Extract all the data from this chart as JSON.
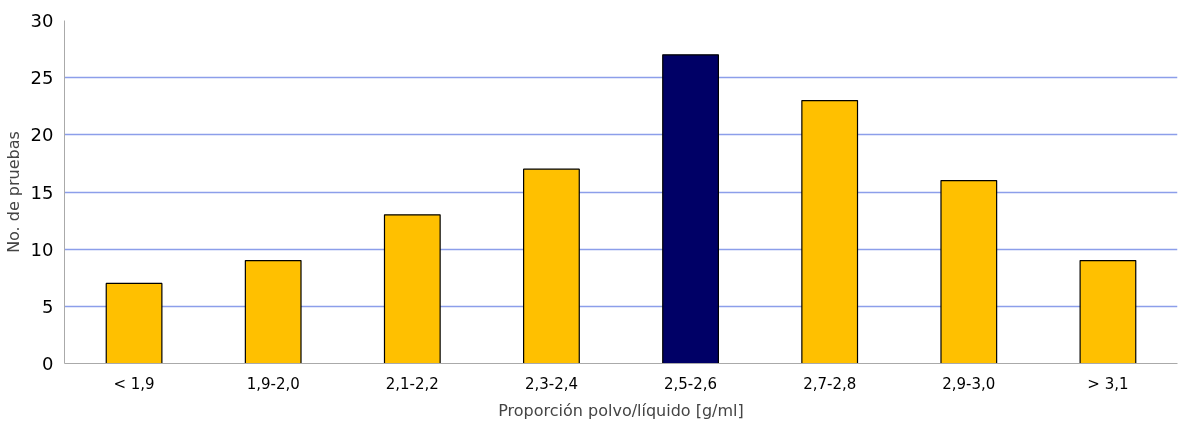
{
  "chart_data": {
    "type": "bar",
    "xlabel": "Proporción polvo/líquido [g/ml]",
    "ylabel": "No. de pruebas",
    "categories": [
      "< 1,9",
      "1,9-2,0",
      "2,1-2,2",
      "2,3-2,4",
      "2,5-2,6",
      "2,7-2,8",
      "2,9-3,0",
      "> 3,1"
    ],
    "values": [
      7,
      9,
      13,
      17,
      27,
      23,
      16,
      9
    ],
    "colors": [
      "#ffc000",
      "#ffc000",
      "#ffc000",
      "#ffc000",
      "#000066",
      "#ffc000",
      "#ffc000",
      "#ffc000"
    ],
    "ylim": [
      0,
      30
    ],
    "yticks": [
      0,
      5,
      10,
      15,
      20,
      25,
      30
    ],
    "grid": "y"
  }
}
